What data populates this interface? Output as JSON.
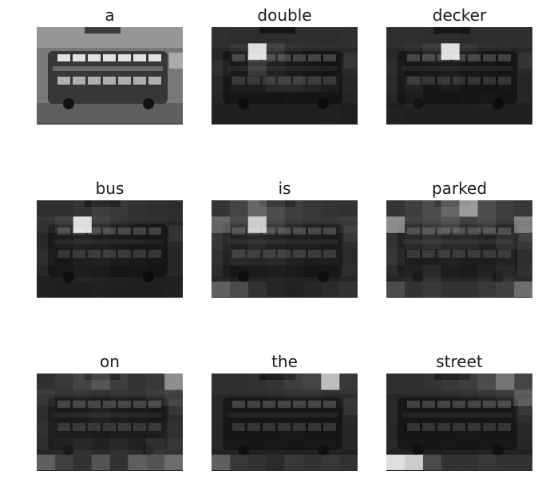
{
  "panels": [
    {
      "word": "a",
      "attention": null
    },
    {
      "word": "double",
      "attention": [
        [
          0.15,
          0.1,
          0.1,
          0.12,
          0.1,
          0.1,
          0.08,
          0.12
        ],
        [
          0.12,
          0.25,
          0.95,
          0.35,
          0.2,
          0.15,
          0.12,
          0.15
        ],
        [
          0.25,
          0.18,
          0.4,
          0.25,
          0.18,
          0.12,
          0.1,
          0.18
        ],
        [
          0.15,
          0.2,
          0.22,
          0.3,
          0.3,
          0.25,
          0.2,
          0.12
        ],
        [
          0.1,
          0.12,
          0.12,
          0.1,
          0.12,
          0.1,
          0.1,
          0.08
        ],
        [
          0.12,
          0.1,
          0.1,
          0.12,
          0.1,
          0.12,
          0.15,
          0.1
        ]
      ]
    },
    {
      "word": "decker",
      "attention": [
        [
          0.12,
          0.15,
          0.1,
          0.12,
          0.08,
          0.1,
          0.1,
          0.1
        ],
        [
          0.15,
          0.2,
          0.3,
          0.95,
          0.25,
          0.15,
          0.12,
          0.12
        ],
        [
          0.2,
          0.12,
          0.18,
          0.2,
          0.15,
          0.12,
          0.1,
          0.15
        ],
        [
          0.18,
          0.25,
          0.15,
          0.2,
          0.12,
          0.1,
          0.12,
          0.1
        ],
        [
          0.1,
          0.2,
          0.12,
          0.1,
          0.12,
          0.15,
          0.1,
          0.1
        ],
        [
          0.15,
          0.12,
          0.12,
          0.1,
          0.12,
          0.12,
          0.1,
          0.12
        ]
      ]
    },
    {
      "word": "bus",
      "attention": [
        [
          0.12,
          0.15,
          0.2,
          0.3,
          0.25,
          0.18,
          0.12,
          0.1
        ],
        [
          0.25,
          0.35,
          0.95,
          0.35,
          0.25,
          0.18,
          0.15,
          0.12
        ],
        [
          0.15,
          0.2,
          0.25,
          0.2,
          0.18,
          0.15,
          0.12,
          0.12
        ],
        [
          0.2,
          0.15,
          0.22,
          0.25,
          0.2,
          0.18,
          0.15,
          0.12
        ],
        [
          0.12,
          0.15,
          0.2,
          0.18,
          0.15,
          0.12,
          0.1,
          0.12
        ],
        [
          0.15,
          0.1,
          0.12,
          0.15,
          0.12,
          0.1,
          0.12,
          0.15
        ]
      ]
    },
    {
      "word": "is",
      "attention": [
        [
          0.2,
          0.35,
          0.55,
          0.4,
          0.3,
          0.25,
          0.2,
          0.18
        ],
        [
          0.55,
          0.4,
          0.9,
          0.4,
          0.3,
          0.25,
          0.25,
          0.3
        ],
        [
          0.3,
          0.25,
          0.3,
          0.25,
          0.2,
          0.2,
          0.18,
          0.2
        ],
        [
          0.25,
          0.3,
          0.28,
          0.3,
          0.25,
          0.2,
          0.22,
          0.18
        ],
        [
          0.2,
          0.15,
          0.18,
          0.2,
          0.18,
          0.15,
          0.15,
          0.2
        ],
        [
          0.55,
          0.45,
          0.3,
          0.2,
          0.15,
          0.2,
          0.25,
          0.3
        ]
      ]
    },
    {
      "word": "parked",
      "attention": [
        [
          0.2,
          0.3,
          0.4,
          0.55,
          0.75,
          0.4,
          0.3,
          0.25
        ],
        [
          0.7,
          0.35,
          0.4,
          0.45,
          0.35,
          0.4,
          0.3,
          0.65
        ],
        [
          0.25,
          0.3,
          0.35,
          0.3,
          0.3,
          0.25,
          0.35,
          0.3
        ],
        [
          0.3,
          0.2,
          0.2,
          0.25,
          0.2,
          0.2,
          0.25,
          0.2
        ],
        [
          0.2,
          0.25,
          0.3,
          0.2,
          0.18,
          0.25,
          0.3,
          0.25
        ],
        [
          0.45,
          0.3,
          0.35,
          0.3,
          0.3,
          0.35,
          0.4,
          0.6
        ]
      ]
    },
    {
      "word": "on",
      "attention": [
        [
          0.15,
          0.25,
          0.35,
          0.45,
          0.3,
          0.2,
          0.25,
          0.7
        ],
        [
          0.3,
          0.2,
          0.25,
          0.2,
          0.25,
          0.2,
          0.3,
          0.35
        ],
        [
          0.2,
          0.18,
          0.2,
          0.25,
          0.2,
          0.18,
          0.15,
          0.2
        ],
        [
          0.25,
          0.2,
          0.2,
          0.18,
          0.2,
          0.18,
          0.2,
          0.25
        ],
        [
          0.2,
          0.25,
          0.3,
          0.25,
          0.3,
          0.25,
          0.35,
          0.3
        ],
        [
          0.55,
          0.4,
          0.3,
          0.5,
          0.3,
          0.55,
          0.5,
          0.6
        ]
      ]
    },
    {
      "word": "the",
      "attention": [
        [
          0.12,
          0.15,
          0.18,
          0.22,
          0.3,
          0.35,
          0.85,
          0.25
        ],
        [
          0.15,
          0.12,
          0.15,
          0.18,
          0.2,
          0.22,
          0.18,
          0.2
        ],
        [
          0.15,
          0.12,
          0.12,
          0.15,
          0.15,
          0.12,
          0.12,
          0.15
        ],
        [
          0.12,
          0.1,
          0.12,
          0.12,
          0.15,
          0.12,
          0.12,
          0.12
        ],
        [
          0.15,
          0.15,
          0.12,
          0.15,
          0.12,
          0.15,
          0.15,
          0.12
        ],
        [
          0.55,
          0.35,
          0.3,
          0.25,
          0.35,
          0.3,
          0.35,
          0.3
        ]
      ]
    },
    {
      "word": "street",
      "attention": [
        [
          0.12,
          0.15,
          0.2,
          0.25,
          0.3,
          0.4,
          0.6,
          0.35
        ],
        [
          0.15,
          0.12,
          0.15,
          0.18,
          0.2,
          0.25,
          0.3,
          0.5
        ],
        [
          0.15,
          0.12,
          0.12,
          0.15,
          0.15,
          0.12,
          0.15,
          0.2
        ],
        [
          0.12,
          0.1,
          0.12,
          0.12,
          0.15,
          0.12,
          0.12,
          0.15
        ],
        [
          0.15,
          0.15,
          0.12,
          0.15,
          0.12,
          0.15,
          0.15,
          0.12
        ],
        [
          0.95,
          0.9,
          0.45,
          0.3,
          0.3,
          0.35,
          0.3,
          0.3
        ]
      ]
    }
  ]
}
